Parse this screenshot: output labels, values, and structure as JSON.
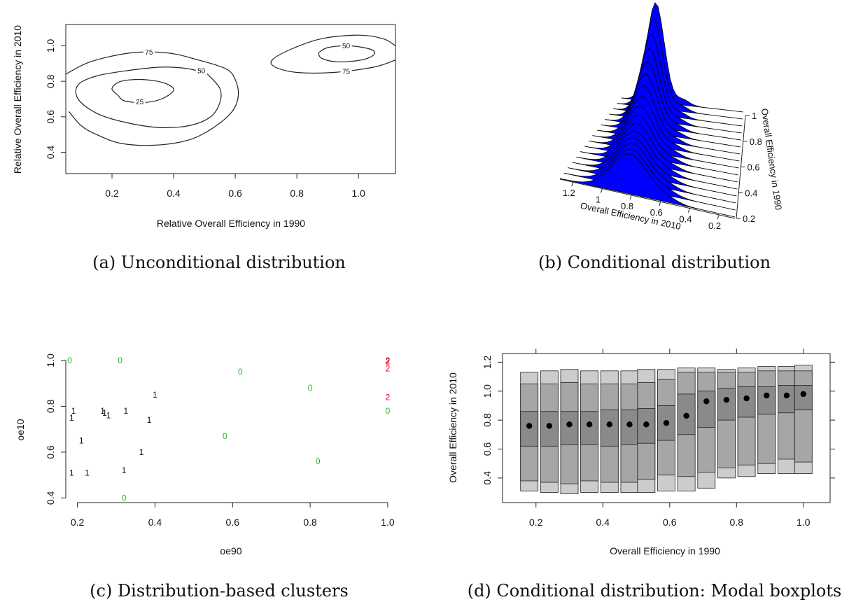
{
  "captions": {
    "a": "(a) Unconditional distribution",
    "b": "(b) Conditional distribution",
    "c": "(c) Distribution-based clusters",
    "d": "(d) Conditional distribution: Modal boxplots"
  },
  "colors": {
    "surface": "#0000ff",
    "green": "#22bb22",
    "red": "#e8001c",
    "box_outer": "#cccccc",
    "box_mid": "#a6a6a6",
    "box_inner": "#8a8a8a"
  },
  "chart_data": [
    {
      "id": "a",
      "type": "contour",
      "xlabel": "Relative Overall Efficiency in 1990",
      "ylabel": "Relative Overall Efficiency in 2010",
      "xlim": [
        0.05,
        1.12
      ],
      "ylim": [
        0.28,
        1.12
      ],
      "xticks": [
        0.2,
        0.4,
        0.6,
        0.8,
        1.0
      ],
      "xtick_labels": [
        "0.2",
        "0.4",
        "0.6",
        "0.8",
        "1.0"
      ],
      "yticks": [
        0.4,
        0.6,
        0.8,
        1.0
      ],
      "ytick_labels": [
        "0.4",
        "0.6",
        "0.8",
        "1.0"
      ],
      "contours": [
        {
          "level": "25",
          "points": [
            [
              0.22,
              0.72
            ],
            [
              0.2,
              0.76
            ],
            [
              0.23,
              0.8
            ],
            [
              0.3,
              0.81
            ],
            [
              0.37,
              0.79
            ],
            [
              0.4,
              0.75
            ],
            [
              0.36,
              0.7
            ],
            [
              0.3,
              0.68
            ],
            [
              0.24,
              0.69
            ],
            [
              0.22,
              0.72
            ]
          ]
        },
        {
          "level": "50",
          "points": [
            [
              0.51,
              0.84
            ],
            [
              0.45,
              0.87
            ],
            [
              0.36,
              0.88
            ],
            [
              0.25,
              0.86
            ],
            [
              0.15,
              0.83
            ],
            [
              0.09,
              0.78
            ],
            [
              0.09,
              0.7
            ],
            [
              0.15,
              0.62
            ],
            [
              0.24,
              0.57
            ],
            [
              0.35,
              0.54
            ],
            [
              0.45,
              0.55
            ],
            [
              0.52,
              0.6
            ],
            [
              0.55,
              0.68
            ],
            [
              0.55,
              0.76
            ],
            [
              0.51,
              0.84
            ]
          ]
        },
        {
          "level": "75",
          "points": [
            [
              0.05,
              0.84
            ],
            [
              0.13,
              0.91
            ],
            [
              0.26,
              0.96
            ],
            [
              0.38,
              0.96
            ],
            [
              0.48,
              0.92
            ],
            [
              0.57,
              0.87
            ],
            [
              0.6,
              0.81
            ],
            [
              0.61,
              0.72
            ],
            [
              0.59,
              0.63
            ],
            [
              0.53,
              0.54
            ],
            [
              0.45,
              0.47
            ],
            [
              0.34,
              0.44
            ],
            [
              0.23,
              0.45
            ],
            [
              0.15,
              0.5
            ],
            [
              0.1,
              0.55
            ],
            [
              0.06,
              0.63
            ]
          ]
        },
        {
          "level": "50",
          "points": [
            [
              0.87,
              0.96
            ],
            [
              0.9,
              0.99
            ],
            [
              0.97,
              1.0
            ],
            [
              1.04,
              0.98
            ],
            [
              1.05,
              0.95
            ],
            [
              1.01,
              0.92
            ],
            [
              0.93,
              0.91
            ],
            [
              0.88,
              0.93
            ],
            [
              0.87,
              0.96
            ]
          ]
        },
        {
          "level": "75",
          "points": [
            [
              1.12,
              1.0
            ],
            [
              1.08,
              1.04
            ],
            [
              1.0,
              1.06
            ],
            [
              0.88,
              1.04
            ],
            [
              0.78,
              0.98
            ],
            [
              0.72,
              0.92
            ],
            [
              0.73,
              0.88
            ],
            [
              0.8,
              0.85
            ],
            [
              0.92,
              0.85
            ],
            [
              1.05,
              0.88
            ],
            [
              1.12,
              0.92
            ]
          ]
        }
      ],
      "contour_labels": [
        {
          "text": "25",
          "x": 0.29,
          "y": 0.685
        },
        {
          "text": "50",
          "x": 0.49,
          "y": 0.86
        },
        {
          "text": "75",
          "x": 0.32,
          "y": 0.965
        },
        {
          "text": "50",
          "x": 0.96,
          "y": 1.0
        },
        {
          "text": "75",
          "x": 0.96,
          "y": 0.855
        }
      ]
    },
    {
      "id": "b",
      "type": "surface",
      "xlabel": "Overall Efficiency in 2010",
      "ylabel": "Overall Efficiency in 1990",
      "x_tick_labels": [
        "1.2",
        "1",
        "0.8",
        "0.6",
        "0.4",
        "0.2"
      ],
      "y_tick_labels": [
        "1",
        "0.8",
        "0.6",
        "0.4",
        "0.2"
      ],
      "slices": 16
    },
    {
      "id": "c",
      "type": "scatter",
      "xlabel": "oe90",
      "ylabel": "oe10",
      "xlim": [
        0.17,
        1.02
      ],
      "ylim": [
        0.38,
        1.03
      ],
      "xticks": [
        0.2,
        0.4,
        0.6,
        0.8,
        1.0
      ],
      "xtick_labels": [
        "0.2",
        "0.4",
        "0.6",
        "0.8",
        "1.0"
      ],
      "yticks": [
        0.4,
        0.6,
        0.8,
        1.0
      ],
      "ytick_labels": [
        "0.4",
        "0.6",
        "0.8",
        "1.0"
      ],
      "points": [
        {
          "label": "0",
          "x": 0.18,
          "y": 1.0,
          "cluster": 0
        },
        {
          "label": "0",
          "x": 0.31,
          "y": 1.0,
          "cluster": 0
        },
        {
          "label": "0",
          "x": 0.62,
          "y": 0.95,
          "cluster": 0
        },
        {
          "label": "0",
          "x": 0.8,
          "y": 0.88,
          "cluster": 0
        },
        {
          "label": "0",
          "x": 1.0,
          "y": 0.78,
          "cluster": 0
        },
        {
          "label": "0",
          "x": 0.58,
          "y": 0.67,
          "cluster": 0
        },
        {
          "label": "0",
          "x": 0.82,
          "y": 0.56,
          "cluster": 0
        },
        {
          "label": "0",
          "x": 0.32,
          "y": 0.4,
          "cluster": 0
        },
        {
          "label": "1",
          "x": 0.19,
          "y": 0.78,
          "cluster": 1
        },
        {
          "label": "1",
          "x": 0.185,
          "y": 0.75,
          "cluster": 1
        },
        {
          "label": "1",
          "x": 0.265,
          "y": 0.78,
          "cluster": 1
        },
        {
          "label": "1",
          "x": 0.27,
          "y": 0.77,
          "cluster": 1
        },
        {
          "label": "1",
          "x": 0.28,
          "y": 0.76,
          "cluster": 1
        },
        {
          "label": "1",
          "x": 0.325,
          "y": 0.78,
          "cluster": 1
        },
        {
          "label": "1",
          "x": 0.4,
          "y": 0.85,
          "cluster": 1
        },
        {
          "label": "1",
          "x": 0.385,
          "y": 0.74,
          "cluster": 1
        },
        {
          "label": "1",
          "x": 0.21,
          "y": 0.65,
          "cluster": 1
        },
        {
          "label": "1",
          "x": 0.365,
          "y": 0.6,
          "cluster": 1
        },
        {
          "label": "1",
          "x": 0.185,
          "y": 0.51,
          "cluster": 1
        },
        {
          "label": "1",
          "x": 0.225,
          "y": 0.51,
          "cluster": 1
        },
        {
          "label": "1",
          "x": 0.32,
          "y": 0.52,
          "cluster": 1
        },
        {
          "label": "2",
          "x": 1.0,
          "y": 1.0,
          "cluster": 2
        },
        {
          "label": "2",
          "x": 1.0,
          "y": 0.995,
          "cluster": 2
        },
        {
          "label": "2",
          "x": 1.0,
          "y": 0.965,
          "cluster": 2
        },
        {
          "label": "2",
          "x": 1.0,
          "y": 0.84,
          "cluster": 2
        }
      ]
    },
    {
      "id": "d",
      "type": "boxplot",
      "xlabel": "Overall Efficiency in 1990",
      "ylabel": "Overall Efficiency in 2010",
      "xlim": [
        0.1,
        1.08
      ],
      "ylim": [
        0.23,
        1.26
      ],
      "xticks": [
        0.2,
        0.4,
        0.6,
        0.8,
        1.0
      ],
      "xtick_labels": [
        "0.2",
        "0.4",
        "0.6",
        "0.8",
        "1.0"
      ],
      "yticks": [
        0.4,
        0.6,
        0.8,
        1.0,
        1.2
      ],
      "ytick_labels": [
        "0.4",
        "0.6",
        "0.8",
        "1.0",
        "1.2"
      ],
      "boxes": [
        {
          "x": 0.18,
          "q": [
            0.31,
            0.38,
            0.62,
            0.86,
            1.05,
            1.13
          ],
          "mode": 0.76
        },
        {
          "x": 0.24,
          "q": [
            0.3,
            0.37,
            0.62,
            0.86,
            1.05,
            1.14
          ],
          "mode": 0.76
        },
        {
          "x": 0.3,
          "q": [
            0.29,
            0.36,
            0.63,
            0.86,
            1.06,
            1.15
          ],
          "mode": 0.77
        },
        {
          "x": 0.36,
          "q": [
            0.3,
            0.38,
            0.63,
            0.86,
            1.05,
            1.14
          ],
          "mode": 0.77
        },
        {
          "x": 0.42,
          "q": [
            0.3,
            0.37,
            0.62,
            0.87,
            1.05,
            1.14
          ],
          "mode": 0.77
        },
        {
          "x": 0.48,
          "q": [
            0.3,
            0.37,
            0.63,
            0.87,
            1.05,
            1.14
          ],
          "mode": 0.77
        },
        {
          "x": 0.53,
          "q": [
            0.3,
            0.39,
            0.64,
            0.88,
            1.06,
            1.15
          ],
          "mode": 0.77
        },
        {
          "x": 0.59,
          "q": [
            0.31,
            0.42,
            0.66,
            0.9,
            1.08,
            1.15
          ],
          "mode": 0.78
        },
        {
          "x": 0.65,
          "q": [
            0.31,
            0.41,
            0.7,
            0.98,
            1.13,
            1.16
          ],
          "mode": 0.83
        },
        {
          "x": 0.71,
          "q": [
            0.33,
            0.44,
            0.75,
            1.0,
            1.13,
            1.16
          ],
          "mode": 0.93
        },
        {
          "x": 0.77,
          "q": [
            0.4,
            0.47,
            0.8,
            1.02,
            1.13,
            1.15
          ],
          "mode": 0.94
        },
        {
          "x": 0.83,
          "q": [
            0.41,
            0.49,
            0.82,
            1.03,
            1.13,
            1.16
          ],
          "mode": 0.95
        },
        {
          "x": 0.89,
          "q": [
            0.43,
            0.5,
            0.84,
            1.03,
            1.14,
            1.17
          ],
          "mode": 0.97
        },
        {
          "x": 0.95,
          "q": [
            0.43,
            0.53,
            0.85,
            1.04,
            1.14,
            1.17
          ],
          "mode": 0.97
        },
        {
          "x": 1.0,
          "q": [
            0.43,
            0.51,
            0.87,
            1.04,
            1.14,
            1.18
          ],
          "mode": 0.98
        }
      ]
    }
  ]
}
